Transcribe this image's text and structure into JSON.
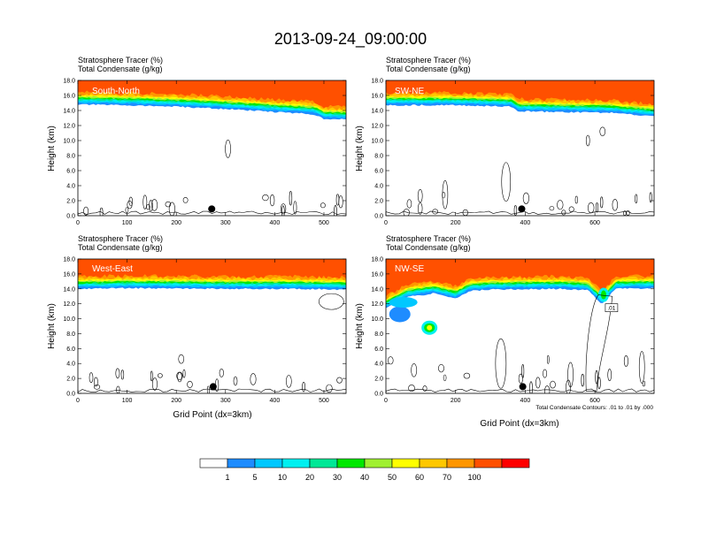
{
  "title": "2013-09-24_09:00:00",
  "colors": {
    "levels": [
      "#ffffff",
      "#1e8cff",
      "#00c8ff",
      "#00f0f0",
      "#00e896",
      "#00e800",
      "#a0f032",
      "#ffff00",
      "#ffc800",
      "#ff9600",
      "#ff5000",
      "#ff0000"
    ],
    "contour": "#000000"
  },
  "legend": {
    "labels": [
      "1",
      "5",
      "10",
      "20",
      "30",
      "40",
      "50",
      "60",
      "70",
      "100"
    ]
  },
  "y_axis_label": "Height (km)",
  "x_axis_label": "Grid Point (dx=3km)",
  "contour_note": "Total Condensate Contours: .01 to .01 by .000",
  "contour_label": ".01",
  "chart_data": [
    {
      "type": "heatmap",
      "panel": "South-North",
      "line1": "Stratosphere Tracer   (%)",
      "line2": "Total Condensate   (g/kg)",
      "xlim": [
        0,
        545
      ],
      "ylim": [
        0,
        18
      ],
      "xticks": [
        0,
        100,
        200,
        300,
        400,
        500
      ],
      "yticks": [
        "0.0",
        "2.0",
        "4.0",
        "6.0",
        "8.0",
        "10.0",
        "12.0",
        "14.0",
        "16.0",
        "18.0"
      ],
      "tracer_base_km": [
        [
          0,
          15.4
        ],
        [
          100,
          15.3
        ],
        [
          200,
          15.1
        ],
        [
          300,
          14.8
        ],
        [
          400,
          14.4
        ],
        [
          480,
          14.1
        ],
        [
          500,
          13.5
        ],
        [
          545,
          13.4
        ]
      ],
      "marker_x": 272
    },
    {
      "type": "heatmap",
      "panel": "SW-NE",
      "line1": "Stratosphere Tracer   (%)",
      "line2": "Total Condensate   (g/kg)",
      "xlim": [
        0,
        770
      ],
      "ylim": [
        0,
        18
      ],
      "xticks": [
        0,
        200,
        400,
        600
      ],
      "yticks": [
        "0.0",
        "2.0",
        "4.0",
        "6.0",
        "8.0",
        "10.0",
        "12.0",
        "14.0",
        "16.0",
        "18.0"
      ],
      "tracer_base_km": [
        [
          0,
          15.3
        ],
        [
          200,
          15.3
        ],
        [
          360,
          15.1
        ],
        [
          380,
          14.5
        ],
        [
          500,
          14.4
        ],
        [
          650,
          14.3
        ],
        [
          770,
          13.8
        ]
      ],
      "marker_x": 390
    },
    {
      "type": "heatmap",
      "panel": "West-East",
      "line1": "Stratosphere Tracer   (%)",
      "line2": "Total Condensate   (g/kg)",
      "xlim": [
        0,
        545
      ],
      "ylim": [
        0,
        18
      ],
      "xticks": [
        0,
        100,
        200,
        300,
        400,
        500
      ],
      "yticks": [
        "0.0",
        "2.0",
        "4.0",
        "6.0",
        "8.0",
        "10.0",
        "12.0",
        "14.0",
        "16.0",
        "18.0"
      ],
      "tracer_base_km": [
        [
          0,
          14.6
        ],
        [
          100,
          14.7
        ],
        [
          300,
          14.6
        ],
        [
          450,
          14.6
        ],
        [
          545,
          14.5
        ]
      ],
      "marker_x": 275
    },
    {
      "type": "heatmap",
      "panel": "NW-SE",
      "line1": "Stratosphere Tracer   (%)",
      "line2": "Total Condensate   (g/kg)",
      "xlim": [
        0,
        770
      ],
      "ylim": [
        0,
        18
      ],
      "xticks": [
        0,
        200,
        400,
        600
      ],
      "yticks": [
        "0.0",
        "2.0",
        "4.0",
        "6.0",
        "8.0",
        "10.0",
        "12.0",
        "14.0",
        "16.0",
        "18.0"
      ],
      "tracer_base_km": [
        [
          0,
          12.0
        ],
        [
          60,
          13.5
        ],
        [
          140,
          14.0
        ],
        [
          200,
          13.3
        ],
        [
          240,
          14.3
        ],
        [
          300,
          14.5
        ],
        [
          500,
          14.6
        ],
        [
          580,
          14.4
        ],
        [
          620,
          12.6
        ],
        [
          660,
          14.6
        ],
        [
          770,
          14.7
        ]
      ],
      "marker_x": 393
    }
  ]
}
